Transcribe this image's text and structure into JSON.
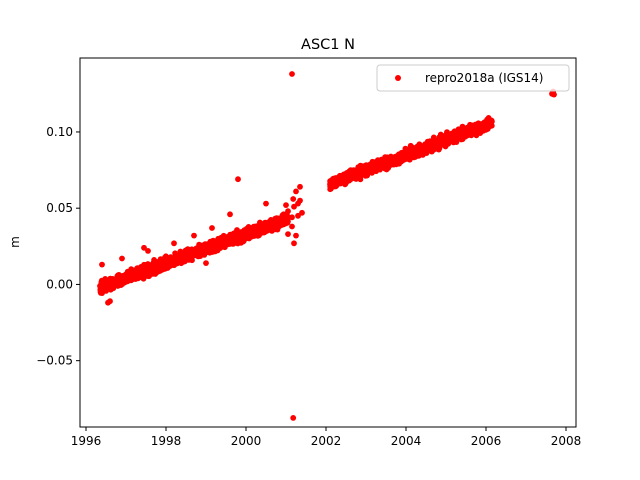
{
  "chart_data": {
    "type": "scatter",
    "title": "ASC1 N",
    "xlabel": "",
    "ylabel": "m",
    "xlim": [
      1995.85,
      2008.25
    ],
    "ylim": [
      -0.0935,
      0.1485
    ],
    "xticks": [
      1996,
      1998,
      2000,
      2002,
      2004,
      2006,
      2008
    ],
    "xtick_labels": [
      "1996",
      "1998",
      "2000",
      "2002",
      "2004",
      "2006",
      "2008"
    ],
    "yticks": [
      -0.05,
      0.0,
      0.05,
      0.1
    ],
    "ytick_labels": [
      "−0.05",
      "0.00",
      "0.05",
      "0.10"
    ],
    "grid": false,
    "legend_position": "top-right",
    "marker_color": "#ff0000",
    "series": [
      {
        "name": "repro2018a (IGS14)",
        "color": "#ff0000",
        "marker": "circle",
        "segments": [
          {
            "x_start": 1996.35,
            "x_end": 2001.05,
            "y_start": -0.002,
            "y_end": 0.043,
            "count": 1500
          },
          {
            "x_start": 2002.1,
            "x_end": 2006.15,
            "y_start": 0.066,
            "y_end": 0.106,
            "count": 1100
          }
        ],
        "points": [
          {
            "x": 1996.4,
            "y": 0.013
          },
          {
            "x": 1996.55,
            "y": -0.012
          },
          {
            "x": 1996.6,
            "y": -0.011
          },
          {
            "x": 1996.9,
            "y": 0.017
          },
          {
            "x": 1997.45,
            "y": 0.024
          },
          {
            "x": 1997.55,
            "y": 0.022
          },
          {
            "x": 1998.2,
            "y": 0.027
          },
          {
            "x": 1998.7,
            "y": 0.032
          },
          {
            "x": 1999.0,
            "y": 0.014
          },
          {
            "x": 1999.15,
            "y": 0.037
          },
          {
            "x": 1999.6,
            "y": 0.046
          },
          {
            "x": 1999.8,
            "y": 0.069
          },
          {
            "x": 2000.5,
            "y": 0.053
          },
          {
            "x": 2001.0,
            "y": 0.052
          },
          {
            "x": 2001.05,
            "y": 0.048
          },
          {
            "x": 2001.15,
            "y": 0.138
          },
          {
            "x": 2001.18,
            "y": -0.0875
          },
          {
            "x": 2001.15,
            "y": 0.038
          },
          {
            "x": 2001.15,
            "y": 0.044
          },
          {
            "x": 2001.18,
            "y": 0.056
          },
          {
            "x": 2001.2,
            "y": 0.051
          },
          {
            "x": 2001.2,
            "y": 0.027
          },
          {
            "x": 2001.25,
            "y": 0.032
          },
          {
            "x": 2001.25,
            "y": 0.061
          },
          {
            "x": 2001.3,
            "y": 0.045
          },
          {
            "x": 2001.3,
            "y": 0.053
          },
          {
            "x": 2001.35,
            "y": 0.064
          },
          {
            "x": 2001.35,
            "y": 0.055
          },
          {
            "x": 2001.05,
            "y": 0.033
          },
          {
            "x": 2001.4,
            "y": 0.047
          },
          {
            "x": 2004.7,
            "y": 0.091
          },
          {
            "x": 2005.3,
            "y": 0.096
          },
          {
            "x": 2007.65,
            "y": 0.125
          },
          {
            "x": 2007.7,
            "y": 0.1245
          },
          {
            "x": 2007.68,
            "y": 0.1265
          }
        ]
      }
    ]
  }
}
